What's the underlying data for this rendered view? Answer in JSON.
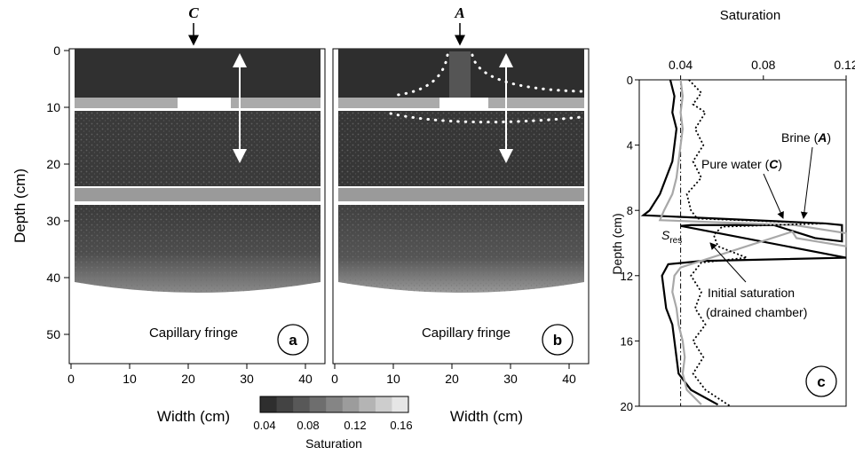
{
  "panel_a": {
    "marker": "C",
    "letter": "a",
    "fringe_label": "Capillary fringe",
    "y_label": "Depth (cm)",
    "x_label": "Width (cm)",
    "y_ticks": [
      "0",
      "10",
      "20",
      "30",
      "40",
      "50"
    ],
    "x_ticks": [
      "0",
      "10",
      "20",
      "30",
      "40"
    ]
  },
  "panel_b": {
    "marker": "A",
    "letter": "b",
    "fringe_label": "Capillary fringe",
    "x_label": "Width (cm)",
    "x_ticks": [
      "0",
      "10",
      "20",
      "30",
      "40"
    ]
  },
  "colorbar": {
    "label": "Saturation",
    "ticks": [
      "0.04",
      "0.08",
      "0.12",
      "0.16"
    ],
    "colors": [
      "#2e2e2e",
      "#434343",
      "#585858",
      "#6e6e6e",
      "#858585",
      "#9c9c9c",
      "#b4b4b4",
      "#cdcdcd",
      "#e6e6e6"
    ]
  },
  "chart_data": {
    "type": "line",
    "letter": "c",
    "xlabel": "Saturation",
    "ylabel": "Depth (cm)",
    "xlim": [
      0.02,
      0.12
    ],
    "ylim": [
      0,
      20
    ],
    "x_ticks": [
      "0.04",
      "0.08",
      "0.12"
    ],
    "y_ticks": [
      "0",
      "4",
      "8",
      "12",
      "16",
      "20"
    ],
    "sres_label": "S",
    "sres_sub": "res",
    "sres_value": 0.04,
    "annotations": {
      "brine": "Brine (",
      "brine_mark": "A",
      "pure": "Pure water (",
      "pure_mark": "C",
      "close": ")",
      "initial_line1": "Initial saturation",
      "initial_line2": "(drained chamber)"
    },
    "series": [
      {
        "style": "solid-black",
        "points": [
          [
            0.035,
            0
          ],
          [
            0.037,
            1
          ],
          [
            0.036,
            2
          ],
          [
            0.038,
            3
          ],
          [
            0.037,
            4
          ],
          [
            0.036,
            5
          ],
          [
            0.033,
            6
          ],
          [
            0.03,
            7
          ],
          [
            0.025,
            8
          ],
          [
            0.022,
            8.3
          ],
          [
            0.11,
            8.8
          ],
          [
            0.118,
            8.9
          ],
          [
            0.118,
            9.9
          ],
          [
            0.105,
            9.7
          ],
          [
            0.085,
            8.9
          ],
          [
            0.045,
            8.9
          ],
          [
            0.04,
            8.95
          ],
          [
            0.12,
            10.9
          ],
          [
            0.05,
            11.1
          ],
          [
            0.034,
            11.3
          ],
          [
            0.031,
            12
          ],
          [
            0.032,
            13
          ],
          [
            0.033,
            14
          ],
          [
            0.036,
            15
          ],
          [
            0.037,
            16
          ],
          [
            0.038,
            17
          ],
          [
            0.039,
            18
          ],
          [
            0.045,
            19
          ],
          [
            0.058,
            19.9
          ]
        ]
      },
      {
        "style": "solid-gray",
        "points": [
          [
            0.04,
            0
          ],
          [
            0.041,
            1
          ],
          [
            0.04,
            2
          ],
          [
            0.041,
            3
          ],
          [
            0.04,
            4
          ],
          [
            0.039,
            5
          ],
          [
            0.038,
            6
          ],
          [
            0.036,
            7
          ],
          [
            0.032,
            8
          ],
          [
            0.03,
            8.6
          ],
          [
            0.095,
            8.9
          ],
          [
            0.12,
            9.4
          ],
          [
            0.12,
            10.2
          ],
          [
            0.096,
            9.7
          ],
          [
            0.094,
            9.3
          ],
          [
            0.04,
            11.5
          ],
          [
            0.037,
            12
          ],
          [
            0.036,
            13
          ],
          [
            0.038,
            14
          ],
          [
            0.039,
            15
          ],
          [
            0.041,
            16
          ],
          [
            0.042,
            17
          ],
          [
            0.041,
            18
          ],
          [
            0.043,
            19
          ],
          [
            0.05,
            19.9
          ]
        ]
      },
      {
        "style": "dotted",
        "points": [
          [
            0.044,
            0
          ],
          [
            0.05,
            0.8
          ],
          [
            0.046,
            1.5
          ],
          [
            0.052,
            2
          ],
          [
            0.047,
            3
          ],
          [
            0.051,
            4
          ],
          [
            0.046,
            5
          ],
          [
            0.05,
            6
          ],
          [
            0.043,
            7
          ],
          [
            0.045,
            8
          ],
          [
            0.048,
            8.5
          ],
          [
            0.11,
            8.8
          ],
          [
            0.06,
            9.0
          ],
          [
            0.056,
            9.5
          ],
          [
            0.058,
            10.2
          ],
          [
            0.066,
            10.6
          ],
          [
            0.072,
            10.9
          ],
          [
            0.05,
            11.2
          ],
          [
            0.045,
            12
          ],
          [
            0.05,
            13
          ],
          [
            0.047,
            14
          ],
          [
            0.052,
            15
          ],
          [
            0.046,
            16
          ],
          [
            0.051,
            17
          ],
          [
            0.046,
            18
          ],
          [
            0.052,
            19
          ],
          [
            0.064,
            20
          ]
        ]
      }
    ]
  }
}
